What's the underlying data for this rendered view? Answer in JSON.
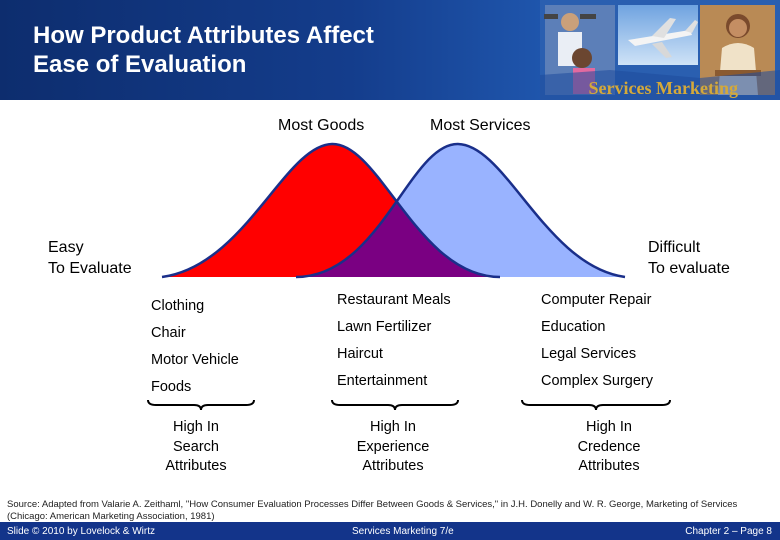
{
  "header": {
    "title_line1": "How Product Attributes Affect",
    "title_line2": "Ease of Evaluation",
    "brand": "Services Marketing"
  },
  "chart": {
    "label_goods": "Most Goods",
    "label_services": "Most Services",
    "left_label_line1": "Easy",
    "left_label_line2": "To Evaluate",
    "right_label_line1": "Difficult",
    "right_label_line2": "To evaluate",
    "colors": {
      "goods": "#ff0000",
      "services": "#99b3ff",
      "overlap": "#7a0082",
      "outline": "#1a2f8a"
    }
  },
  "columns": {
    "search": [
      "Clothing",
      "Chair",
      "Motor Vehicle",
      "Foods"
    ],
    "experience": [
      "Restaurant Meals",
      "Lawn Fertilizer",
      "Haircut",
      "Entertainment"
    ],
    "credence": [
      "Computer Repair",
      "Education",
      "Legal Services",
      "Complex Surgery"
    ]
  },
  "attributes": {
    "search": [
      "High In",
      "Search",
      "Attributes"
    ],
    "experience": [
      "High In",
      "Experience",
      "Attributes"
    ],
    "credence": [
      "High In",
      "Credence",
      "Attributes"
    ]
  },
  "source": "Source: Adapted from Valarie A. Zeithaml, \"How Consumer Evaluation Processes Differ Between Goods & Services,\" in J.H. Donelly and W. R. George, Marketing of Services (Chicago: American Marketing Association, 1981)",
  "footer": {
    "left": "Slide © 2010 by Lovelock & Wirtz",
    "center": "Services Marketing 7/e",
    "right": "Chapter 2 – Page 8"
  }
}
